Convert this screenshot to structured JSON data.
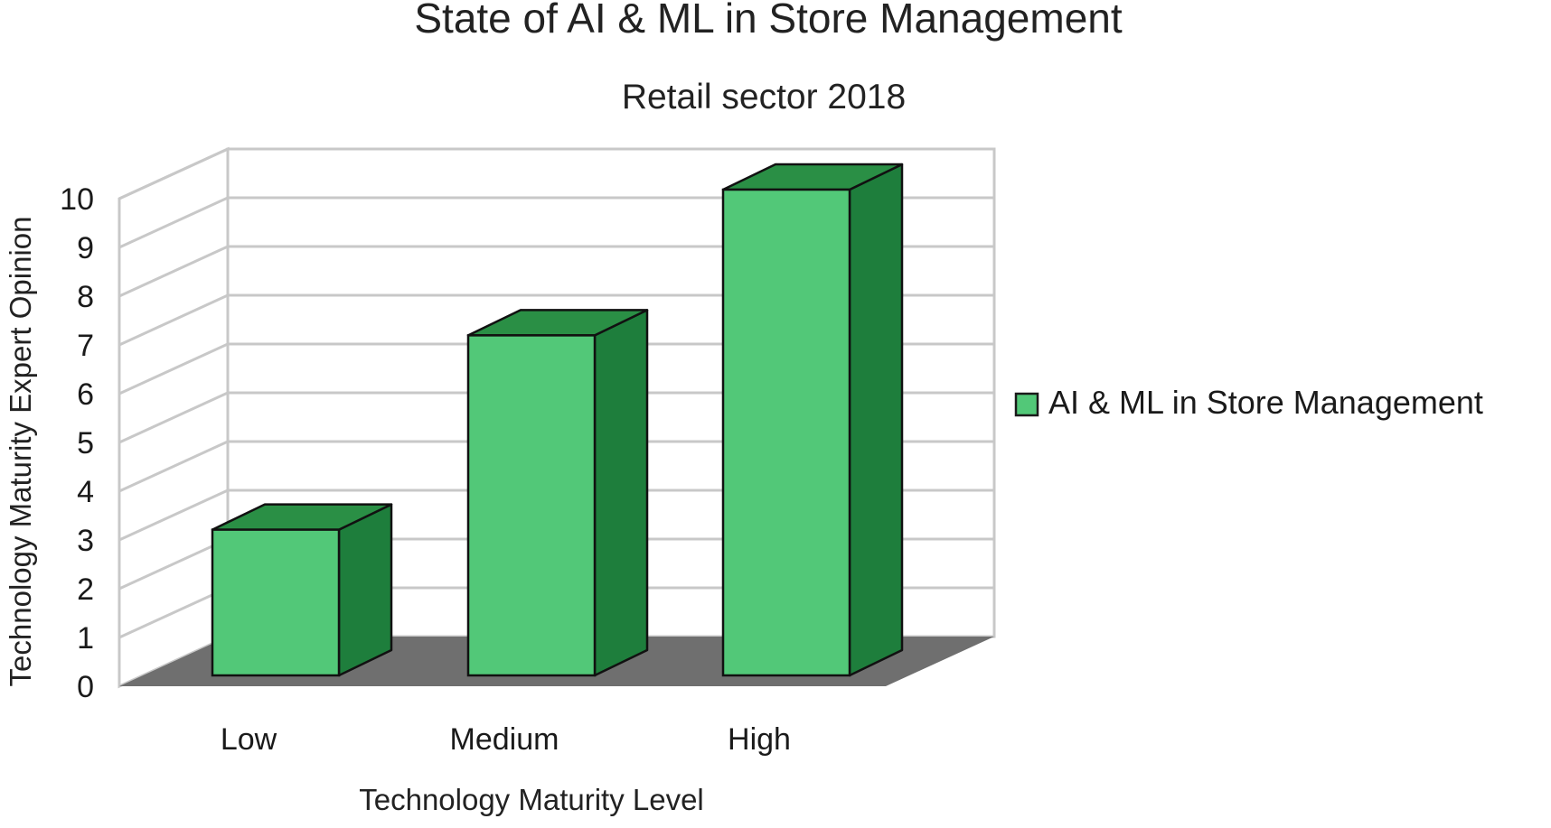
{
  "chart_data": {
    "type": "bar",
    "title": "State of AI & ML in Store Management",
    "subtitle": "Retail sector 2018",
    "xlabel": "Technology Maturity Level",
    "ylabel": "Technology Maturity Expert Opinion",
    "categories": [
      "Low",
      "Medium",
      "High"
    ],
    "series": [
      {
        "name": "AI & ML in Store Management",
        "values": [
          3,
          7,
          10
        ]
      }
    ],
    "ylim": [
      0,
      10
    ],
    "yticks": [
      0,
      1,
      2,
      3,
      4,
      5,
      6,
      7,
      8,
      9,
      10
    ],
    "grid": true,
    "legend": "right",
    "style": "3d-column",
    "colors": {
      "bar_front": "#52c878",
      "bar_side": "#1e7e3c",
      "bar_top": "#2a8f45",
      "floor": "#6f6f6f",
      "grid": "#c8c8c8"
    }
  }
}
